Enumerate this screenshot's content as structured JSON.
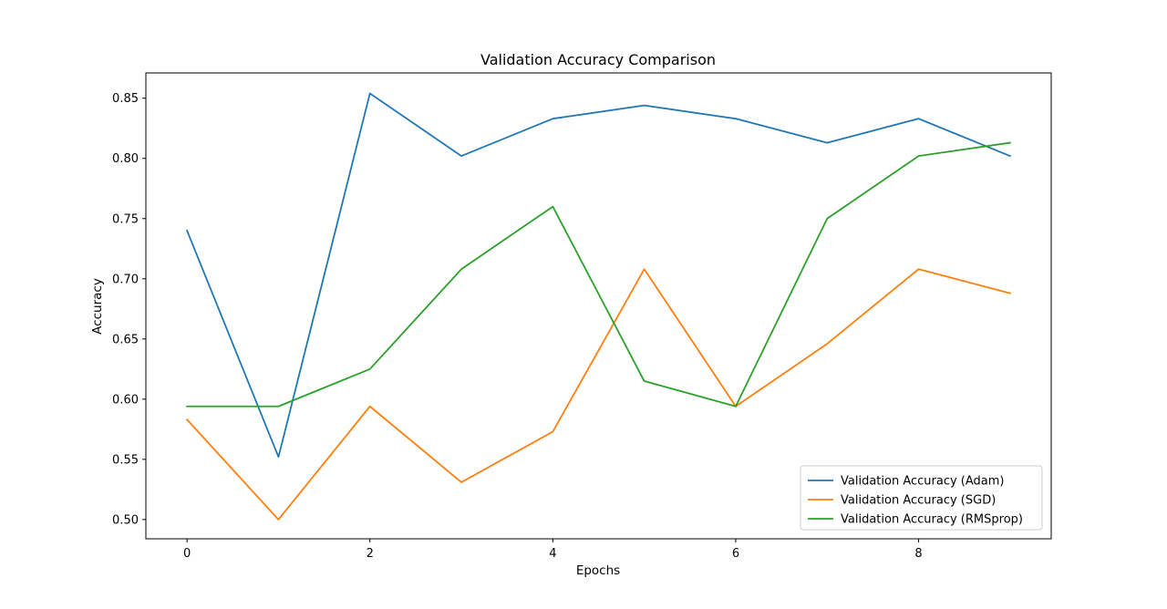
{
  "chart_data": {
    "type": "line",
    "title": "Validation Accuracy Comparison",
    "xlabel": "Epochs",
    "ylabel": "Accuracy",
    "x": [
      0,
      1,
      2,
      3,
      4,
      5,
      6,
      7,
      8,
      9
    ],
    "xlim": [
      -0.45,
      9.45
    ],
    "ylim": [
      0.484,
      0.871
    ],
    "xticks": [
      0,
      2,
      4,
      6,
      8
    ],
    "yticks": [
      0.5,
      0.55,
      0.6,
      0.65,
      0.7,
      0.75,
      0.8,
      0.85
    ],
    "xtick_labels": [
      "0",
      "2",
      "4",
      "6",
      "8"
    ],
    "ytick_labels": [
      "0.50",
      "0.55",
      "0.60",
      "0.65",
      "0.70",
      "0.75",
      "0.80",
      "0.85"
    ],
    "grid": false,
    "legend_position": "lower-right",
    "series": [
      {
        "name": "Validation Accuracy (Adam)",
        "color": "#1f77b4",
        "values": [
          0.74,
          0.552,
          0.854,
          0.802,
          0.833,
          0.844,
          0.833,
          0.813,
          0.833,
          0.802
        ]
      },
      {
        "name": "Validation Accuracy (SGD)",
        "color": "#ff7f0e",
        "values": [
          0.583,
          0.5,
          0.594,
          0.531,
          0.573,
          0.708,
          0.594,
          0.646,
          0.708,
          0.688
        ]
      },
      {
        "name": "Validation Accuracy (RMSprop)",
        "color": "#2ca02c",
        "values": [
          0.594,
          0.594,
          0.625,
          0.708,
          0.76,
          0.615,
          0.594,
          0.75,
          0.802,
          0.813
        ]
      }
    ]
  }
}
